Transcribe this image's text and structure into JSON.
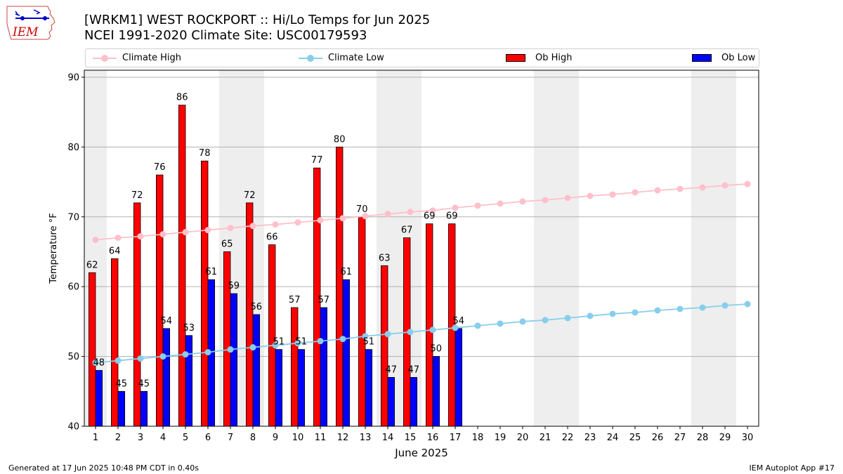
{
  "header": {
    "title_line1": "[WRKM1] WEST ROCKPORT :: Hi/Lo Temps for Jun 2025",
    "title_line2": "NCEI 1991-2020 Climate Site: USC00179593",
    "logo_text": "IEM"
  },
  "legend": {
    "climate_high": "Climate High",
    "climate_low": "Climate Low",
    "ob_high": "Ob High",
    "ob_low": "Ob Low"
  },
  "footer": {
    "generated": "Generated at 17 Jun 2025 10:48 PM CDT in 0.40s",
    "app": "IEM Autoplot App #17"
  },
  "colors": {
    "ob_high": "#ff0000",
    "ob_low": "#0000ff",
    "climate_high": "#ffc0cb",
    "climate_low": "#87ceeb",
    "weekend_shade": "#eeeeee",
    "grid": "#b0b0b0"
  },
  "chart_data": {
    "type": "bar",
    "xlabel": "June 2025",
    "ylabel": "Temperature °F",
    "ylim": [
      40,
      91
    ],
    "yticks": [
      40,
      50,
      60,
      70,
      80,
      90
    ],
    "grid": "horizontal",
    "legend_position": "top",
    "days": [
      1,
      2,
      3,
      4,
      5,
      6,
      7,
      8,
      9,
      10,
      11,
      12,
      13,
      14,
      15,
      16,
      17,
      18,
      19,
      20,
      21,
      22,
      23,
      24,
      25,
      26,
      27,
      28,
      29,
      30
    ],
    "weekend_shaded_days": [
      [
        1,
        1
      ],
      [
        7,
        8
      ],
      [
        14,
        15
      ],
      [
        21,
        22
      ],
      [
        28,
        29
      ]
    ],
    "series": [
      {
        "name": "Ob High",
        "kind": "bar",
        "values": [
          62,
          64,
          72,
          76,
          86,
          78,
          65,
          72,
          66,
          57,
          77,
          80,
          70,
          63,
          67,
          69,
          69
        ],
        "labels": [
          "62",
          "64",
          "72",
          "76",
          "86",
          "78",
          "65",
          "72",
          "66",
          "57",
          "77",
          "80",
          "70",
          "63",
          "67",
          "69",
          "69"
        ]
      },
      {
        "name": "Ob Low",
        "kind": "bar",
        "values": [
          48,
          45,
          45,
          54,
          53,
          61,
          59,
          56,
          51,
          51,
          57,
          61,
          51,
          47,
          47,
          50,
          54
        ],
        "labels": [
          "48",
          "45",
          "45",
          "54",
          "53",
          "61",
          "59",
          "56",
          "51",
          "51",
          "57",
          "61",
          "51",
          "47",
          "47",
          "50",
          "54"
        ]
      },
      {
        "name": "Climate High",
        "kind": "line",
        "values": [
          66.7,
          67.0,
          67.2,
          67.5,
          67.8,
          68.1,
          68.4,
          68.7,
          68.9,
          69.2,
          69.5,
          69.8,
          70.1,
          70.4,
          70.7,
          70.9,
          71.3,
          71.6,
          71.9,
          72.2,
          72.4,
          72.7,
          73.0,
          73.2,
          73.5,
          73.8,
          74.0,
          74.2,
          74.5,
          74.7
        ]
      },
      {
        "name": "Climate Low",
        "kind": "line",
        "values": [
          49.1,
          49.4,
          49.7,
          50.0,
          50.3,
          50.6,
          51.0,
          51.3,
          51.6,
          51.9,
          52.2,
          52.5,
          52.9,
          53.2,
          53.5,
          53.8,
          54.1,
          54.4,
          54.7,
          55.0,
          55.2,
          55.5,
          55.8,
          56.1,
          56.3,
          56.6,
          56.8,
          57.0,
          57.3,
          57.5
        ]
      }
    ]
  }
}
